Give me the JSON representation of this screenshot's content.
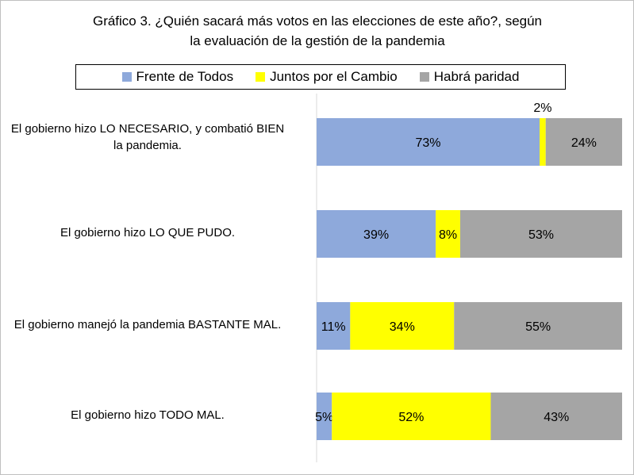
{
  "chart_data": {
    "type": "bar",
    "orientation": "horizontal",
    "stacked": true,
    "title_lines": [
      "Gráfico 3. ¿Quién sacará más votos en las elecciones de este año?, según",
      "la evaluación de la gestión de la pandemia"
    ],
    "categories": [
      [
        "El gobierno hizo LO NECESARIO, y combatió BIEN",
        "la pandemia."
      ],
      [
        "El gobierno hizo LO QUE PUDO."
      ],
      [
        "El gobierno manejó la pandemia BASTANTE MAL."
      ],
      [
        "El gobierno hizo TODO MAL."
      ]
    ],
    "series": [
      {
        "name": "Frente de Todos",
        "color": "#8EA9DB",
        "values": [
          73,
          39,
          11,
          5
        ]
      },
      {
        "name": "Juntos por el Cambio",
        "color": "#FFFF00",
        "values": [
          2,
          8,
          34,
          52
        ]
      },
      {
        "name": "Habrá paridad",
        "color": "#A5A5A5",
        "values": [
          24,
          53,
          55,
          43
        ]
      }
    ],
    "value_suffix": "%",
    "xlim": [
      0,
      100
    ],
    "legend_position": "top",
    "grid": false
  }
}
